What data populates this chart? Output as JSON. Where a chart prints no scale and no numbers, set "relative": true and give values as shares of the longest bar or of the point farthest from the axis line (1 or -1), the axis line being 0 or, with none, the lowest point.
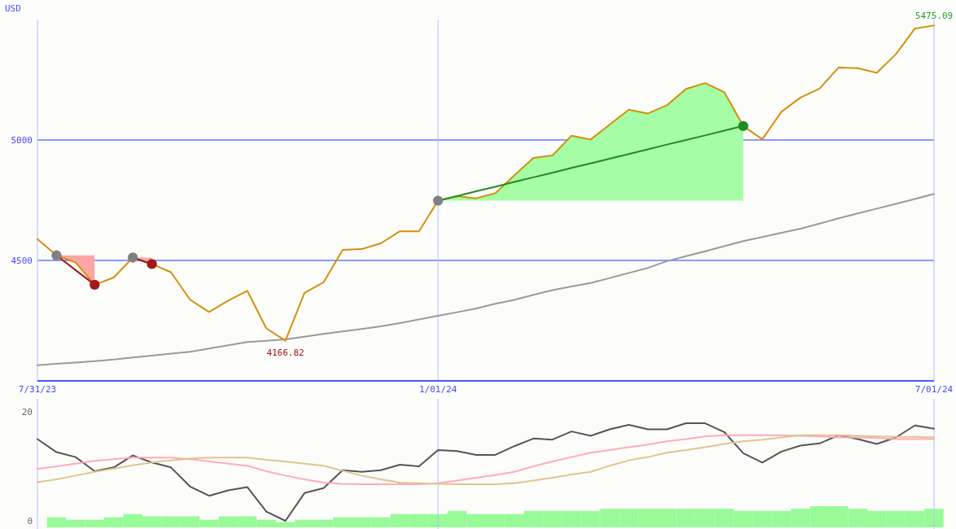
{
  "chart_data": [
    {
      "type": "line",
      "ylabel": "USD",
      "categories": [
        "7/31/23",
        null,
        null,
        null,
        null,
        null,
        null,
        null,
        null,
        null,
        null,
        null,
        null,
        null,
        null,
        null,
        null,
        null,
        null,
        null,
        null,
        "1/01/24",
        null,
        null,
        null,
        null,
        null,
        null,
        null,
        null,
        null,
        null,
        null,
        null,
        null,
        null,
        null,
        null,
        null,
        null,
        null,
        null,
        null,
        null,
        null,
        null,
        null,
        "7/01/24"
      ],
      "ylim": [
        4000,
        5500
      ],
      "yticks": [
        4500,
        5000
      ],
      "grid": true,
      "series": [
        {
          "type": "line",
          "color": "#9a9a9a",
          "values": [
            4065,
            4071,
            4076,
            4082,
            4089,
            4097,
            4105,
            4113,
            4121,
            4134,
            4148,
            4161,
            4166,
            4172,
            4183,
            4195,
            4205,
            4215,
            4226,
            4240,
            4255,
            4270,
            4285,
            4301,
            4320,
            4336,
            4357,
            4377,
            4392,
            4406,
            4427,
            4448,
            4469,
            4497,
            4518,
            4538,
            4559,
            4580,
            4597,
            4615,
            4632,
            4653,
            4675,
            4695,
            4715,
            4735,
            4755,
            4776
          ]
        },
        {
          "type": "line",
          "color": "#d4900c",
          "values": [
            4589,
            4521,
            4491,
            4399,
            4429,
            4512,
            4485,
            4451,
            4337,
            4286,
            4333,
            4374,
            4218,
            4166.82,
            4365,
            4409,
            4544,
            4547,
            4571,
            4621,
            4621,
            4748,
            4767,
            4758,
            4779,
            4853,
            4926,
            4936,
            5018,
            5002,
            5064,
            5126,
            5110,
            5144,
            5212,
            5236,
            5199,
            5058,
            5003,
            5117,
            5176,
            5213,
            5301,
            5298,
            5279,
            5356,
            5463,
            5475.09
          ],
          "value_labels": [
            null,
            null,
            null,
            null,
            null,
            null,
            null,
            null,
            null,
            null,
            null,
            null,
            null,
            "4166.82",
            null,
            null,
            null,
            null,
            null,
            null,
            null,
            null,
            null,
            null,
            null,
            null,
            null,
            null,
            null,
            null,
            null,
            null,
            null,
            null,
            null,
            null,
            null,
            null,
            null,
            null,
            null,
            null,
            null,
            null,
            null,
            null,
            null,
            "5475.09"
          ]
        },
        {
          "type": "line",
          "color": "#a01818",
          "values": [
            null,
            4521,
            4460,
            4399,
            null,
            4512,
            4485,
            null,
            null,
            null,
            null,
            null,
            null,
            null,
            null,
            null,
            null,
            null,
            null,
            null,
            null,
            null,
            null,
            null,
            null,
            null,
            null,
            null,
            null,
            null,
            null,
            null,
            null,
            null,
            null,
            null,
            null,
            null,
            null,
            null,
            null,
            null,
            null,
            null,
            null,
            null,
            null,
            null
          ],
          "lower": [
            null,
            4521,
            4491,
            4399,
            null,
            4512,
            4485,
            null,
            null,
            null,
            null,
            null,
            null,
            null,
            null,
            null,
            null,
            null,
            null,
            null,
            null,
            null,
            null,
            null,
            null,
            null,
            null,
            null,
            null,
            null,
            null,
            null,
            null,
            null,
            null,
            null,
            null,
            null,
            null,
            null,
            null,
            null,
            null,
            null,
            null,
            null,
            null,
            null
          ],
          "upper": [
            null,
            4521,
            4521,
            4521,
            null,
            4512,
            4512,
            null,
            null,
            null,
            null,
            null,
            null,
            null,
            null,
            null,
            null,
            null,
            null,
            null,
            null,
            null,
            null,
            null,
            null,
            null,
            null,
            null,
            null,
            null,
            null,
            null,
            null,
            null,
            null,
            null,
            null,
            null,
            null,
            null,
            null,
            null,
            null,
            null,
            null,
            null,
            null,
            null
          ]
        },
        {
          "type": "line",
          "color": "#228b22",
          "values": [
            null,
            null,
            null,
            null,
            null,
            null,
            null,
            null,
            null,
            null,
            null,
            null,
            null,
            null,
            null,
            null,
            null,
            null,
            null,
            null,
            null,
            4748,
            4767,
            4787,
            4806,
            4826,
            4845,
            4864,
            4884,
            4903,
            4922,
            4942,
            4961,
            4981,
            5000,
            5019,
            5039,
            5058,
            null,
            null,
            null,
            null,
            null,
            null,
            null,
            null,
            null,
            null
          ],
          "lower": [
            null,
            null,
            null,
            null,
            null,
            null,
            null,
            null,
            null,
            null,
            null,
            null,
            null,
            null,
            null,
            null,
            null,
            null,
            null,
            null,
            null,
            4748,
            4748,
            4748,
            4748,
            4748,
            4748,
            4748,
            4748,
            4748,
            4748,
            4748,
            4748,
            4748,
            4748,
            4748,
            4748,
            4748,
            null,
            null,
            null,
            null,
            null,
            null,
            null,
            null,
            null,
            null
          ],
          "upper": [
            null,
            null,
            null,
            null,
            null,
            null,
            null,
            null,
            null,
            null,
            null,
            null,
            null,
            null,
            null,
            null,
            null,
            null,
            null,
            null,
            null,
            4748,
            4767,
            4758,
            4779,
            4853,
            4926,
            4936,
            5018,
            5002,
            5064,
            5126,
            5110,
            5144,
            5212,
            5236,
            5199,
            5058,
            null,
            null,
            null,
            null,
            null,
            null,
            null,
            null,
            null,
            null
          ]
        },
        {
          "type": "scatter",
          "color": "#808080",
          "marker": "circle",
          "values": [
            null,
            4521,
            null,
            null,
            null,
            4512,
            null,
            null,
            null,
            null,
            null,
            null,
            null,
            null,
            null,
            null,
            null,
            null,
            null,
            null,
            null,
            4748,
            null,
            null,
            null,
            null,
            null,
            null,
            null,
            null,
            null,
            null,
            null,
            null,
            null,
            null,
            null,
            null,
            null,
            null,
            null,
            null,
            null,
            null,
            null,
            null,
            null,
            null
          ]
        },
        {
          "type": "scatter",
          "color": "#a01818",
          "marker": "circle",
          "values": [
            null,
            null,
            null,
            4399,
            null,
            null,
            4485,
            null,
            null,
            null,
            null,
            null,
            null,
            null,
            null,
            null,
            null,
            null,
            null,
            null,
            null,
            null,
            null,
            null,
            null,
            null,
            null,
            null,
            null,
            null,
            null,
            null,
            null,
            null,
            null,
            null,
            null,
            null,
            null,
            null,
            null,
            null,
            null,
            null,
            null,
            null,
            null,
            null
          ]
        },
        {
          "type": "scatter",
          "color": "#228b22",
          "marker": "circle",
          "values": [
            null,
            null,
            null,
            null,
            null,
            null,
            null,
            null,
            null,
            null,
            null,
            null,
            null,
            null,
            null,
            null,
            null,
            null,
            null,
            null,
            null,
            null,
            null,
            null,
            null,
            null,
            null,
            null,
            null,
            null,
            null,
            null,
            null,
            null,
            null,
            null,
            null,
            5058,
            null,
            null,
            null,
            null,
            null,
            null,
            null,
            null,
            null,
            null
          ]
        }
      ]
    },
    {
      "type": "line",
      "categories": [
        null,
        null,
        null,
        null,
        null,
        null,
        null,
        null,
        null,
        null,
        null,
        null,
        null,
        null,
        null,
        null,
        null,
        null,
        null,
        null,
        null,
        null,
        null,
        null,
        null,
        null,
        null,
        null,
        null,
        null,
        null,
        null,
        null,
        null,
        null,
        null,
        null,
        null,
        null,
        null,
        null,
        null,
        null,
        null,
        null,
        null,
        null,
        null
      ],
      "ylim": [
        0,
        20
      ],
      "yticks": [
        0,
        20
      ],
      "tick_labels": "y",
      "series": [
        {
          "color": "#555555",
          "values": [
            15.0,
            12.6,
            11.7,
            9.1,
            9.8,
            12.0,
            10.7,
            9.8,
            6.3,
            4.6,
            5.6,
            6.2,
            1.7,
            0,
            5.1,
            6.0,
            9.3,
            9.0,
            9.3,
            10.3,
            10.0,
            13.0,
            12.8,
            12.1,
            12.1,
            13.7,
            15.1,
            14.9,
            16.4,
            15.6,
            16.8,
            17.6,
            16.8,
            16.8,
            17.9,
            17.9,
            16.3,
            12.4,
            10.7,
            12.7,
            13.8,
            14.2,
            15.7,
            15.0,
            14.1,
            15.3,
            17.5,
            16.9
          ]
        },
        {
          "color": "#ffaabb",
          "values": [
            9.5,
            10.0,
            10.5,
            11.0,
            11.3,
            11.6,
            11.6,
            11.6,
            11.3,
            10.9,
            10.5,
            10.1,
            9.1,
            8.3,
            7.6,
            7.0,
            6.8,
            6.7,
            6.7,
            6.7,
            6.7,
            6.9,
            7.4,
            7.9,
            8.4,
            9.0,
            10.0,
            10.9,
            11.7,
            12.5,
            13.0,
            13.5,
            14.0,
            14.6,
            15.0,
            15.5,
            15.7,
            15.7,
            15.7,
            15.7,
            15.6,
            15.5,
            15.3,
            15.3,
            15.2,
            15.0,
            15.0,
            15.0
          ]
        },
        {
          "color": "#e0c48c",
          "values": [
            7.1,
            7.6,
            8.3,
            9.0,
            9.6,
            10.2,
            10.7,
            11.1,
            11.4,
            11.6,
            11.6,
            11.6,
            11.2,
            10.9,
            10.5,
            10.1,
            9.2,
            8.3,
            7.6,
            7.0,
            6.9,
            6.8,
            6.7,
            6.7,
            6.7,
            6.9,
            7.4,
            7.9,
            8.5,
            9.0,
            10.1,
            11.1,
            11.7,
            12.5,
            13.0,
            13.5,
            14.1,
            14.6,
            14.9,
            15.3,
            15.7,
            15.7,
            15.7,
            15.6,
            15.5,
            15.4,
            15.4,
            15.3
          ]
        }
      ]
    },
    {
      "type": "bar",
      "relative": true,
      "tick_labels": false,
      "color": "#98fb98",
      "categories": [
        null,
        null,
        null,
        null,
        null,
        null,
        null,
        null,
        null,
        null,
        null,
        null,
        null,
        null,
        null,
        null,
        null,
        null,
        null,
        null,
        null,
        null,
        null,
        null,
        null,
        null,
        null,
        null,
        null,
        null,
        null,
        null,
        null,
        null,
        null,
        null,
        null,
        null,
        null,
        null,
        null,
        null,
        null,
        null,
        null,
        null,
        null,
        null
      ],
      "values": [
        null,
        0.48,
        0.36,
        0.36,
        0.48,
        0.63,
        0.52,
        0.52,
        0.52,
        0.36,
        0.52,
        0.52,
        0.36,
        0.25,
        0.36,
        0.36,
        0.48,
        0.48,
        0.48,
        0.63,
        0.63,
        0.63,
        0.78,
        0.63,
        0.63,
        0.63,
        0.78,
        0.78,
        0.78,
        0.78,
        0.88,
        0.88,
        0.88,
        0.88,
        0.88,
        0.88,
        0.88,
        0.78,
        0.78,
        0.78,
        0.88,
        1,
        1,
        0.88,
        0.78,
        0.78,
        0.78,
        0.88
      ]
    }
  ]
}
